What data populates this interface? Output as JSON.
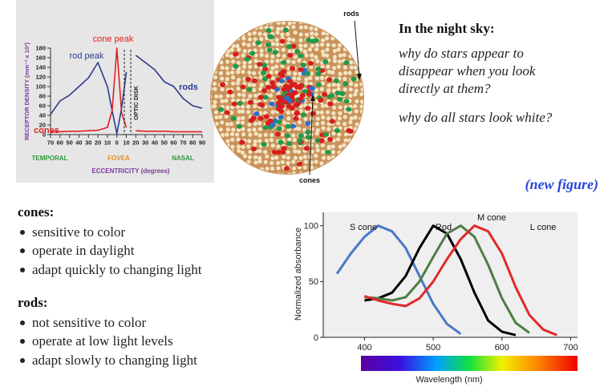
{
  "chart_data": [
    {
      "type": "line",
      "y_label": "RECEPTOR DENSITY (mm⁻² x 10³)",
      "x_label": "ECCENTRICITY (degrees)",
      "region_labels": [
        "TEMPORAL",
        "FOVEA",
        "NASAL"
      ],
      "annotations": [
        "cone peak",
        "rod peak",
        "OPTIC DISK"
      ],
      "x": [
        -70,
        -60,
        -50,
        -40,
        -30,
        -20,
        -10,
        -5,
        0,
        5,
        10,
        15,
        20,
        30,
        40,
        50,
        60,
        70,
        80,
        90
      ],
      "series": [
        {
          "name": "rods",
          "color": "#2b3a8c",
          "values": [
            42,
            70,
            82,
            100,
            118,
            150,
            100,
            50,
            2,
            55,
            130,
            null,
            165,
            150,
            135,
            110,
            100,
            75,
            60,
            55
          ]
        },
        {
          "name": "cones",
          "color": "#e02020",
          "values": [
            6,
            6,
            7,
            7,
            8,
            9,
            15,
            50,
            180,
            45,
            15,
            null,
            8,
            7,
            7,
            7,
            6,
            6,
            6,
            6
          ]
        }
      ],
      "xlim": [
        -70,
        90
      ],
      "xticks": [
        {
          "value": -70,
          "label": "70"
        },
        {
          "value": -60,
          "label": "60"
        },
        {
          "value": -50,
          "label": "50"
        },
        {
          "value": -40,
          "label": "40"
        },
        {
          "value": -30,
          "label": "30"
        },
        {
          "value": -20,
          "label": "20"
        },
        {
          "value": -10,
          "label": "10"
        },
        0,
        10,
        20,
        30,
        40,
        50,
        60,
        70,
        80,
        90
      ],
      "ylim": [
        0,
        180
      ],
      "yticks": [
        0,
        20,
        40,
        60,
        80,
        100,
        120,
        140,
        160,
        180
      ]
    },
    {
      "type": "line",
      "y_label": "Normalized absorbance",
      "x_label": "Wavelength (nm)",
      "x": [
        360,
        380,
        400,
        420,
        440,
        460,
        480,
        500,
        520,
        540,
        560,
        580,
        600,
        620,
        640,
        660,
        680
      ],
      "series": [
        {
          "name": "S cone",
          "color": "#4a78c8",
          "values": [
            57,
            75,
            90,
            100,
            95,
            80,
            55,
            30,
            12,
            3,
            null,
            null,
            null,
            null,
            null,
            null,
            null
          ]
        },
        {
          "name": "Rod",
          "color": "#000000",
          "values": [
            null,
            null,
            33,
            35,
            40,
            55,
            80,
            100,
            93,
            70,
            40,
            15,
            5,
            2,
            null,
            null,
            null
          ]
        },
        {
          "name": "M cone",
          "color": "#4e7d45",
          "values": [
            null,
            null,
            36,
            35,
            33,
            36,
            50,
            72,
            93,
            100,
            90,
            65,
            35,
            13,
            4,
            null,
            null
          ]
        },
        {
          "name": "L cone",
          "color": "#e02a2a",
          "values": [
            null,
            null,
            37,
            33,
            30,
            28,
            35,
            50,
            70,
            88,
            100,
            95,
            75,
            45,
            20,
            7,
            2
          ]
        }
      ],
      "xlim": [
        340,
        710
      ],
      "xticks": [
        400,
        500,
        600,
        700
      ],
      "ylim": [
        0,
        112
      ],
      "yticks": [
        0,
        50,
        100
      ]
    }
  ],
  "retina": {
    "rods_label": "rods",
    "cones_label": "cones"
  },
  "night_sky": {
    "heading": "In the night sky:",
    "question_1": [
      "why do stars appear to",
      "disappear when you look",
      "directly at them?"
    ],
    "question_2": "why do all stars look white?"
  },
  "new_figure": "(new figure)",
  "cones": {
    "heading": "cones:",
    "items": [
      "sensitive to color",
      "operate in daylight",
      "adapt quickly to changing light"
    ]
  },
  "rods": {
    "heading": "rods:",
    "items": [
      "not sensitive to color",
      "operate at low light levels",
      "adapt slowly to changing light"
    ]
  }
}
